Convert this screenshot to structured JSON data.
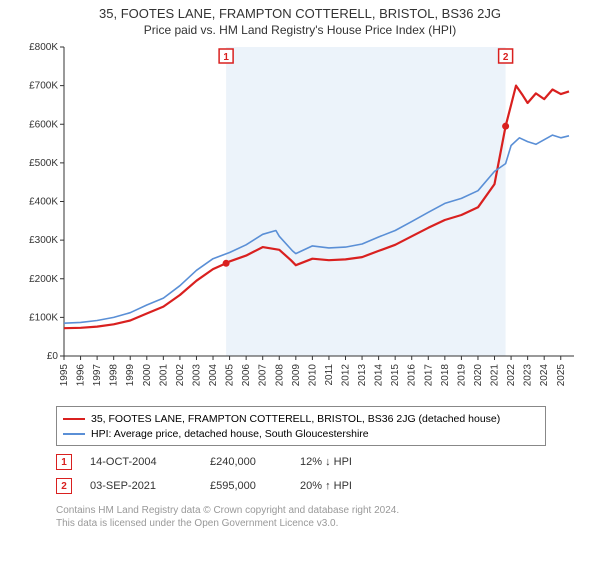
{
  "title": "35, FOOTES LANE, FRAMPTON COTTERELL, BRISTOL, BS36 2JG",
  "subtitle": "Price paid vs. HM Land Registry's House Price Index (HPI)",
  "chart": {
    "type": "line",
    "background_color": "#ffffff",
    "plot_bg": "#ffffff",
    "highlight_bg": "#ecf3fa",
    "axis_color": "#333333",
    "label_fontsize": 10,
    "ylim": [
      0,
      800000
    ],
    "ytick_step": 100000,
    "yticks": [
      "£0",
      "£100K",
      "£200K",
      "£300K",
      "£400K",
      "£500K",
      "£600K",
      "£700K",
      "£800K"
    ],
    "xlim": [
      1995,
      2025.8
    ],
    "xticks": [
      1995,
      1996,
      1997,
      1998,
      1999,
      2000,
      2001,
      2002,
      2003,
      2004,
      2005,
      2006,
      2007,
      2008,
      2009,
      2010,
      2011,
      2012,
      2013,
      2014,
      2015,
      2016,
      2017,
      2018,
      2019,
      2020,
      2021,
      2022,
      2023,
      2024,
      2025
    ],
    "highlight_ranges": [
      {
        "x0": 2004.79,
        "x1": 2021.67
      }
    ],
    "series": [
      {
        "name": "red",
        "color": "#d9201f",
        "width": 2.2,
        "points": [
          [
            1995,
            72000
          ],
          [
            1996,
            73000
          ],
          [
            1997,
            76000
          ],
          [
            1998,
            82000
          ],
          [
            1999,
            92000
          ],
          [
            2000,
            110000
          ],
          [
            2001,
            128000
          ],
          [
            2002,
            158000
          ],
          [
            2003,
            195000
          ],
          [
            2004,
            225000
          ],
          [
            2004.79,
            240000
          ],
          [
            2005,
            245000
          ],
          [
            2006,
            260000
          ],
          [
            2007,
            282000
          ],
          [
            2008,
            275000
          ],
          [
            2008.7,
            248000
          ],
          [
            2009,
            235000
          ],
          [
            2010,
            252000
          ],
          [
            2011,
            248000
          ],
          [
            2012,
            250000
          ],
          [
            2013,
            256000
          ],
          [
            2014,
            272000
          ],
          [
            2015,
            288000
          ],
          [
            2016,
            310000
          ],
          [
            2017,
            332000
          ],
          [
            2018,
            352000
          ],
          [
            2019,
            365000
          ],
          [
            2020,
            385000
          ],
          [
            2021,
            445000
          ],
          [
            2021.67,
            595000
          ],
          [
            2022,
            650000
          ],
          [
            2022.3,
            700000
          ],
          [
            2022.7,
            675000
          ],
          [
            2023,
            655000
          ],
          [
            2023.5,
            680000
          ],
          [
            2024,
            665000
          ],
          [
            2024.5,
            690000
          ],
          [
            2025,
            678000
          ],
          [
            2025.5,
            685000
          ]
        ]
      },
      {
        "name": "blue",
        "color": "#5a8fd6",
        "width": 1.6,
        "points": [
          [
            1995,
            85000
          ],
          [
            1996,
            87000
          ],
          [
            1997,
            92000
          ],
          [
            1998,
            100000
          ],
          [
            1999,
            112000
          ],
          [
            2000,
            132000
          ],
          [
            2001,
            150000
          ],
          [
            2002,
            182000
          ],
          [
            2003,
            222000
          ],
          [
            2004,
            252000
          ],
          [
            2005,
            268000
          ],
          [
            2006,
            288000
          ],
          [
            2007,
            315000
          ],
          [
            2007.8,
            325000
          ],
          [
            2008,
            310000
          ],
          [
            2008.8,
            272000
          ],
          [
            2009,
            265000
          ],
          [
            2010,
            285000
          ],
          [
            2011,
            280000
          ],
          [
            2012,
            282000
          ],
          [
            2013,
            290000
          ],
          [
            2014,
            308000
          ],
          [
            2015,
            325000
          ],
          [
            2016,
            348000
          ],
          [
            2017,
            372000
          ],
          [
            2018,
            395000
          ],
          [
            2019,
            408000
          ],
          [
            2020,
            428000
          ],
          [
            2021,
            478000
          ],
          [
            2021.67,
            498000
          ],
          [
            2022,
            545000
          ],
          [
            2022.5,
            565000
          ],
          [
            2023,
            555000
          ],
          [
            2023.5,
            548000
          ],
          [
            2024,
            560000
          ],
          [
            2024.5,
            572000
          ],
          [
            2025,
            565000
          ],
          [
            2025.5,
            570000
          ]
        ]
      }
    ],
    "markers": [
      {
        "num": "1",
        "x": 2004.79,
        "y": 240000,
        "color": "#d9201f",
        "dot_y": 240000
      },
      {
        "num": "2",
        "x": 2021.67,
        "y": 595000,
        "color": "#d9201f",
        "dot_y": 595000
      }
    ]
  },
  "legend": {
    "items": [
      {
        "color": "#d9201f",
        "label": "35, FOOTES LANE, FRAMPTON COTTERELL, BRISTOL, BS36 2JG (detached house)"
      },
      {
        "color": "#5a8fd6",
        "label": "HPI: Average price, detached house, South Gloucestershire"
      }
    ]
  },
  "marker_rows": [
    {
      "num": "1",
      "color": "#d9201f",
      "date": "14-OCT-2004",
      "price": "£240,000",
      "delta": "12% ↓ HPI"
    },
    {
      "num": "2",
      "color": "#d9201f",
      "date": "03-SEP-2021",
      "price": "£595,000",
      "delta": "20% ↑ HPI"
    }
  ],
  "footer": {
    "line1": "Contains HM Land Registry data © Crown copyright and database right 2024.",
    "line2": "This data is licensed under the Open Government Licence v3.0."
  }
}
